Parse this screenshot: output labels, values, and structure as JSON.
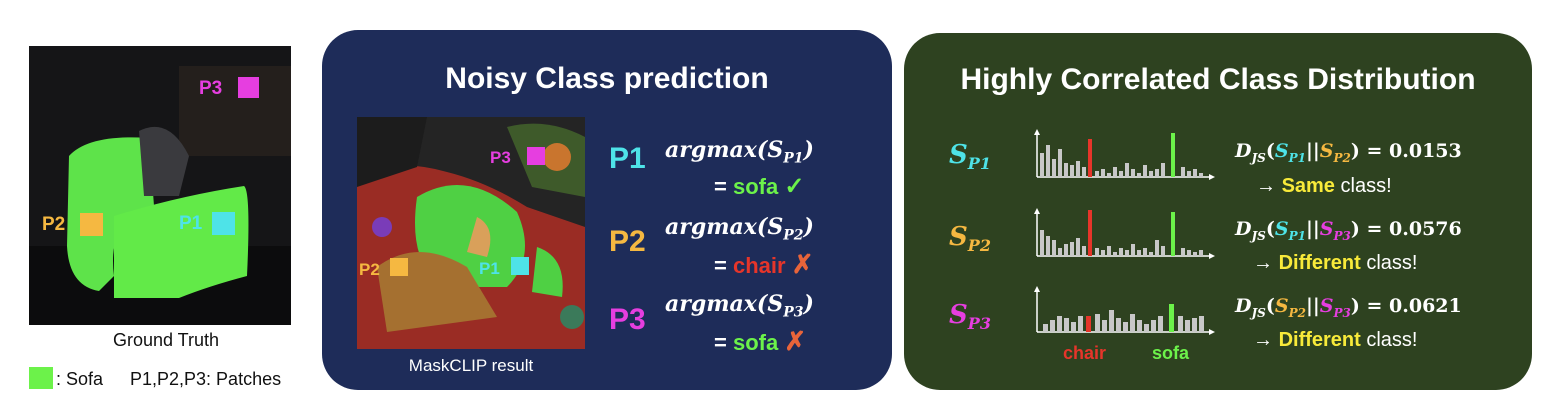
{
  "left": {
    "caption": "Ground Truth",
    "legend_sofa": ": Sofa",
    "legend_patches": "P1,P2,P3: Patches",
    "patches": [
      "P1",
      "P2",
      "P3"
    ]
  },
  "noisy": {
    "title": "Noisy Class prediction",
    "image_caption": "MaskCLIP result",
    "image_patches": [
      "P1",
      "P2",
      "P3"
    ],
    "rows": [
      {
        "patch": "P1",
        "func": "argmax",
        "arg_s": "S",
        "arg_sub": "P1",
        "eq": "=",
        "cls": "sofa",
        "mark": "✓"
      },
      {
        "patch": "P2",
        "func": "argmax",
        "arg_s": "S",
        "arg_sub": "P2",
        "eq": "=",
        "cls": "chair",
        "mark": "✗"
      },
      {
        "patch": "P3",
        "func": "argmax",
        "arg_s": "S",
        "arg_sub": "P3",
        "eq": "=",
        "cls": "sofa",
        "mark": "✗"
      }
    ]
  },
  "corr": {
    "title": "Highly Correlated Class Distribution",
    "rows": [
      {
        "s": "S",
        "sub": "P1",
        "d": "D",
        "dsub": "JS",
        "a": "S",
        "asub": "P1",
        "sep": "||",
        "b": "S",
        "bsub": "P2",
        "eq": "= 0.0153",
        "arrow": "→",
        "word": "Same",
        "tail": "class!"
      },
      {
        "s": "S",
        "sub": "P2",
        "d": "D",
        "dsub": "JS",
        "a": "S",
        "asub": "P1",
        "sep": "||",
        "b": "S",
        "bsub": "P3",
        "eq": "= 0.0576",
        "arrow": "→",
        "word": "Different",
        "tail": "class!"
      },
      {
        "s": "S",
        "sub": "P3",
        "d": "D",
        "dsub": "JS",
        "a": "S",
        "asub": "P2",
        "sep": "||",
        "b": "S",
        "bsub": "P3",
        "eq": "= 0.0621",
        "arrow": "→",
        "word": "Different",
        "tail": "class!"
      }
    ],
    "axis_chair": "chair",
    "axis_sofa": "sofa"
  },
  "colors": {
    "p1": "#4ee3e8",
    "p2": "#f5b841",
    "p3": "#e63ee0",
    "sofa": "#6cf24a",
    "chair": "#e6352a",
    "yellow": "#f8ea3a"
  }
}
